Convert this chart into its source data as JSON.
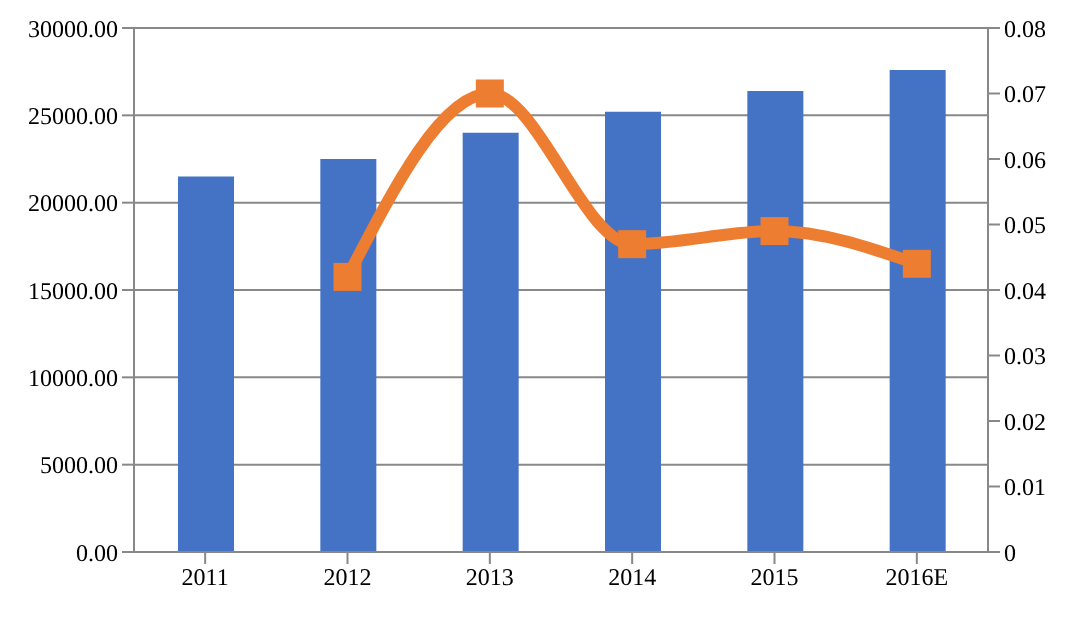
{
  "chart_data": {
    "type": "bar",
    "categories": [
      "2011",
      "2012",
      "2013",
      "2014",
      "2015",
      "2016E"
    ],
    "series": [
      {
        "color": "#4472c4",
        "values": [
          21500,
          22500,
          24000,
          25200,
          26400,
          27600
        ]
      },
      {
        "type": "line",
        "axis": "y2",
        "color": "#ed7d31",
        "marker": "square",
        "values": [
          null,
          0.042,
          0.07,
          0.047,
          0.049,
          0.044
        ]
      }
    ],
    "ylim": [
      0,
      30000
    ],
    "yticks": [
      {
        "value": 0,
        "label": "0.00"
      },
      {
        "value": 5000,
        "label": "5000.00"
      },
      {
        "value": 10000,
        "label": "10000.00"
      },
      {
        "value": 15000,
        "label": "15000.00"
      },
      {
        "value": 20000,
        "label": "20000.00"
      },
      {
        "value": 25000,
        "label": "25000.00"
      },
      {
        "value": 30000,
        "label": "30000.00"
      }
    ],
    "y2lim": [
      0,
      0.08
    ],
    "y2ticks": [
      0,
      0.01,
      0.02,
      0.03,
      0.04,
      0.05,
      0.06,
      0.07,
      0.08
    ],
    "grid": "y"
  }
}
